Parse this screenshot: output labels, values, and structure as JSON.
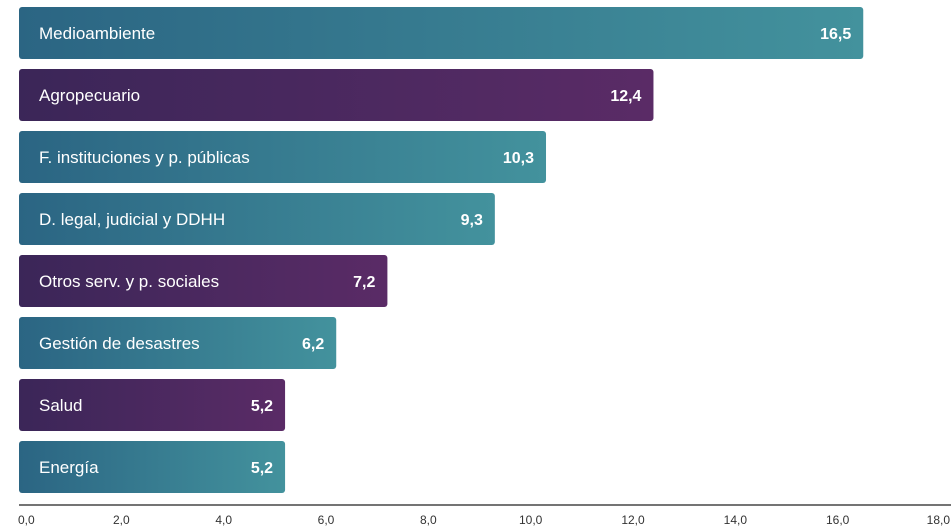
{
  "colors": {
    "teal_dark": "#2b6583",
    "teal_light": "#43929d",
    "purple_dark": "#3b2658",
    "purple_light": "#5a2b66",
    "axis": "#222222"
  },
  "chart_data": {
    "type": "bar",
    "orientation": "horizontal",
    "title": "",
    "xlabel": "",
    "ylabel": "",
    "xlim": [
      0,
      18
    ],
    "grid": false,
    "categories": [
      "Medioambiente",
      "Agropecuario",
      "F. instituciones y p. públicas",
      "D. legal, judicial y DDHH",
      "Otros serv. y p. sociales",
      "Gestión de desastres",
      "Salud",
      "Energía"
    ],
    "values": [
      16.5,
      12.4,
      10.3,
      9.3,
      7.2,
      6.2,
      5.2,
      5.2
    ],
    "value_labels": [
      "16,5",
      "12,4",
      "10,3",
      "9,3",
      "7,2",
      "6,2",
      "5,2",
      "5,2"
    ],
    "bar_colors": [
      "teal",
      "purple",
      "teal",
      "teal",
      "purple",
      "teal",
      "purple",
      "teal"
    ],
    "x_ticks": [
      0,
      2,
      4,
      6,
      8,
      10,
      12,
      14,
      16,
      18
    ],
    "x_tick_labels": [
      "0,0",
      "2,0",
      "4,0",
      "6,0",
      "8,0",
      "10,0",
      "12,0",
      "14,0",
      "16,0",
      "18,0"
    ]
  }
}
